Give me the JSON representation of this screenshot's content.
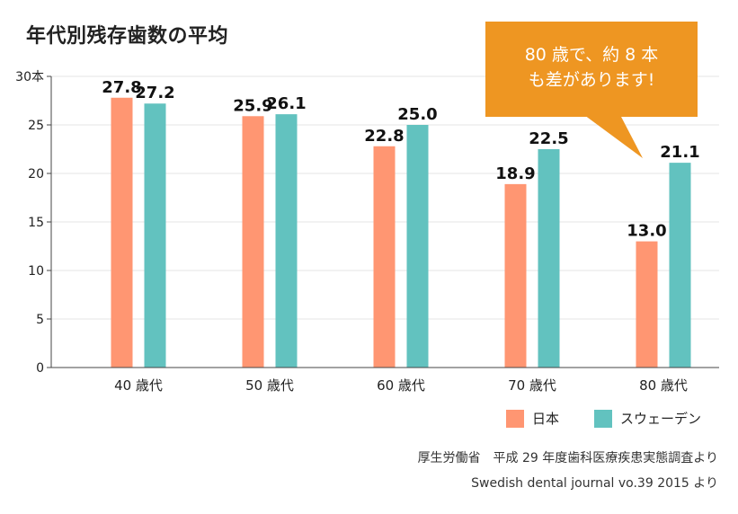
{
  "title": "年代別残存歯数の平均",
  "callout": {
    "line1": "80 歳で、約 8 本",
    "line2": "も差があります!"
  },
  "colors": {
    "japan": "#ff9672",
    "sweden": "#62c2bf",
    "callout": "#ee9622",
    "axis": "#444444",
    "grid": "#e6e6e6"
  },
  "sources": [
    "厚生労働省　平成 29 年度歯科医療疾患実態調査より",
    "Swedish dental journal vo.39 2015 より"
  ],
  "chart_data": {
    "type": "bar",
    "title": "年代別残存歯数の平均",
    "categories": [
      "40 歳代",
      "50 歳代",
      "60 歳代",
      "70 歳代",
      "80 歳代"
    ],
    "series": [
      {
        "name": "日本",
        "values": [
          27.8,
          25.9,
          22.8,
          18.9,
          13.0
        ]
      },
      {
        "name": "スウェーデン",
        "values": [
          27.2,
          26.1,
          25.0,
          22.5,
          21.1
        ]
      }
    ],
    "y_ticks": [
      "0",
      "5",
      "10",
      "15",
      "20",
      "25",
      "30本"
    ],
    "ylim": [
      0,
      30
    ],
    "grid": true,
    "legend": "bottom-right"
  }
}
